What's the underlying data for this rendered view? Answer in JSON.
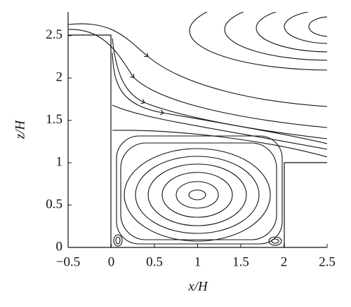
{
  "chart_data": {
    "type": "streamline",
    "xlabel": "x/H",
    "ylabel": "z/H",
    "xlim": [
      -0.5,
      2.5
    ],
    "ylim": [
      0,
      2.78
    ],
    "xticks": [
      {
        "value": -0.5,
        "label": "−0.5"
      },
      0,
      0.5,
      1,
      1.5,
      2,
      2.5
    ],
    "yticks": [
      0,
      0.5,
      1,
      1.5,
      2,
      2.5
    ]
  }
}
